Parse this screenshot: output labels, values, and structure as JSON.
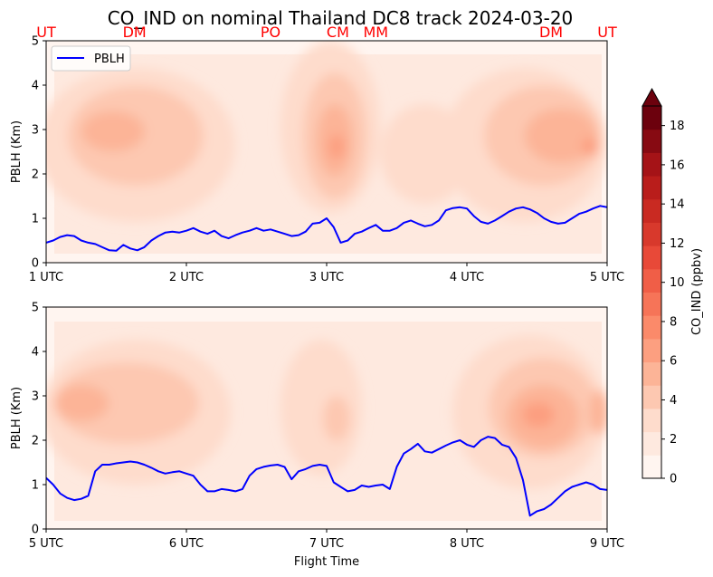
{
  "chart_data": {
    "title": "CO_IND on nominal Thailand DC8 track 2024-03-20",
    "colorbar": {
      "label": "CO_IND (ppbv)",
      "range": [
        0,
        19
      ],
      "ticks": [
        "0",
        "2",
        "4",
        "6",
        "8",
        "10",
        "12",
        "14",
        "16",
        "18"
      ],
      "colors": [
        "#fff5f0",
        "#fee9df",
        "#fedccc",
        "#fdc8b1",
        "#fcb497",
        "#fc9f80",
        "#fb8a6a",
        "#f67458",
        "#f05e47",
        "#e84938",
        "#d8392c",
        "#c92a22",
        "#b91d1b",
        "#a51317",
        "#870a12",
        "#6c010d"
      ],
      "extend": "max"
    },
    "panels": [
      {
        "type": "line",
        "ylabel": "PBLH (Km)",
        "ylim": [
          0,
          5
        ],
        "yticks": [
          "0",
          "1",
          "2",
          "3",
          "4",
          "5"
        ],
        "xlim": [
          1,
          5
        ],
        "xticks": [
          "1 UTC",
          "2 UTC",
          "3 UTC",
          "4 UTC",
          "5 UTC"
        ],
        "xlabel": "",
        "legend": "upper-left",
        "site_labels": [
          {
            "t": 1.0,
            "text": "UT"
          },
          {
            "t": 1.63,
            "text": "DM"
          },
          {
            "t": 2.6,
            "text": "PO"
          },
          {
            "t": 3.08,
            "text": "CM"
          },
          {
            "t": 3.35,
            "text": "MM"
          },
          {
            "t": 4.6,
            "text": "DM"
          },
          {
            "t": 5.0,
            "text": "UT"
          }
        ],
        "series": [
          {
            "name": "PBLH",
            "color": "#0000ff",
            "x": [
              1.0,
              1.05,
              1.1,
              1.15,
              1.2,
              1.25,
              1.3,
              1.35,
              1.4,
              1.45,
              1.5,
              1.55,
              1.6,
              1.65,
              1.7,
              1.75,
              1.8,
              1.85,
              1.9,
              1.95,
              2.0,
              2.05,
              2.1,
              2.15,
              2.2,
              2.25,
              2.3,
              2.35,
              2.4,
              2.45,
              2.5,
              2.55,
              2.6,
              2.65,
              2.7,
              2.75,
              2.8,
              2.85,
              2.9,
              2.95,
              3.0,
              3.05,
              3.1,
              3.15,
              3.2,
              3.25,
              3.3,
              3.35,
              3.4,
              3.45,
              3.5,
              3.55,
              3.6,
              3.65,
              3.7,
              3.75,
              3.8,
              3.85,
              3.9,
              3.95,
              4.0,
              4.05,
              4.1,
              4.15,
              4.2,
              4.25,
              4.3,
              4.35,
              4.4,
              4.45,
              4.5,
              4.55,
              4.6,
              4.65,
              4.7,
              4.75,
              4.8,
              4.85,
              4.9,
              4.95,
              5.0
            ],
            "y": [
              0.45,
              0.5,
              0.58,
              0.62,
              0.6,
              0.5,
              0.45,
              0.42,
              0.35,
              0.28,
              0.27,
              0.4,
              0.32,
              0.28,
              0.35,
              0.5,
              0.6,
              0.68,
              0.7,
              0.68,
              0.72,
              0.78,
              0.7,
              0.65,
              0.72,
              0.6,
              0.55,
              0.62,
              0.68,
              0.72,
              0.78,
              0.72,
              0.75,
              0.7,
              0.65,
              0.6,
              0.62,
              0.7,
              0.88,
              0.9,
              1.0,
              0.8,
              0.45,
              0.5,
              0.65,
              0.7,
              0.78,
              0.85,
              0.72,
              0.72,
              0.78,
              0.9,
              0.95,
              0.88,
              0.82,
              0.85,
              0.95,
              1.18,
              1.23,
              1.25,
              1.22,
              1.05,
              0.92,
              0.88,
              0.95,
              1.05,
              1.15,
              1.22,
              1.25,
              1.2,
              1.12,
              1.0,
              0.92,
              0.88,
              0.9,
              1.0,
              1.1,
              1.15,
              1.22,
              1.28,
              1.25
            ]
          }
        ]
      },
      {
        "type": "line",
        "ylabel": "PBLH (Km)",
        "ylim": [
          0,
          5
        ],
        "yticks": [
          "0",
          "1",
          "2",
          "3",
          "4",
          "5"
        ],
        "xlim": [
          5,
          9
        ],
        "xticks": [
          "5 UTC",
          "6 UTC",
          "7 UTC",
          "8 UTC",
          "9 UTC"
        ],
        "xlabel": "Flight Time",
        "series": [
          {
            "color": "#0000ff",
            "x": [
              5.0,
              5.05,
              5.1,
              5.15,
              5.2,
              5.25,
              5.3,
              5.35,
              5.4,
              5.45,
              5.5,
              5.55,
              5.6,
              5.65,
              5.7,
              5.75,
              5.8,
              5.85,
              5.9,
              5.95,
              6.0,
              6.05,
              6.1,
              6.15,
              6.2,
              6.25,
              6.3,
              6.35,
              6.4,
              6.45,
              6.5,
              6.55,
              6.6,
              6.65,
              6.7,
              6.75,
              6.8,
              6.85,
              6.9,
              6.95,
              7.0,
              7.05,
              7.1,
              7.15,
              7.2,
              7.25,
              7.3,
              7.35,
              7.4,
              7.45,
              7.5,
              7.55,
              7.6,
              7.65,
              7.7,
              7.75,
              7.8,
              7.85,
              7.9,
              7.95,
              8.0,
              8.05,
              8.1,
              8.15,
              8.2,
              8.25,
              8.3,
              8.35,
              8.4,
              8.45,
              8.5,
              8.55,
              8.6,
              8.65,
              8.7,
              8.75,
              8.8,
              8.85,
              8.9,
              8.95,
              9.0
            ],
            "y": [
              1.15,
              1.0,
              0.8,
              0.7,
              0.65,
              0.68,
              0.75,
              1.3,
              1.45,
              1.45,
              1.48,
              1.5,
              1.52,
              1.5,
              1.45,
              1.38,
              1.3,
              1.25,
              1.28,
              1.3,
              1.25,
              1.2,
              1.0,
              0.85,
              0.85,
              0.9,
              0.88,
              0.85,
              0.9,
              1.2,
              1.35,
              1.4,
              1.43,
              1.45,
              1.4,
              1.12,
              1.3,
              1.35,
              1.42,
              1.45,
              1.42,
              1.05,
              0.95,
              0.85,
              0.88,
              0.98,
              0.95,
              0.98,
              1.0,
              0.9,
              1.4,
              1.7,
              1.8,
              1.92,
              1.75,
              1.72,
              1.8,
              1.88,
              1.95,
              2.0,
              1.9,
              1.85,
              2.0,
              2.08,
              2.05,
              1.9,
              1.85,
              1.6,
              1.1,
              0.3,
              0.4,
              0.45,
              0.55,
              0.7,
              0.85,
              0.95,
              1.0,
              1.05,
              1.0,
              0.9,
              0.88
            ]
          }
        ]
      }
    ]
  }
}
